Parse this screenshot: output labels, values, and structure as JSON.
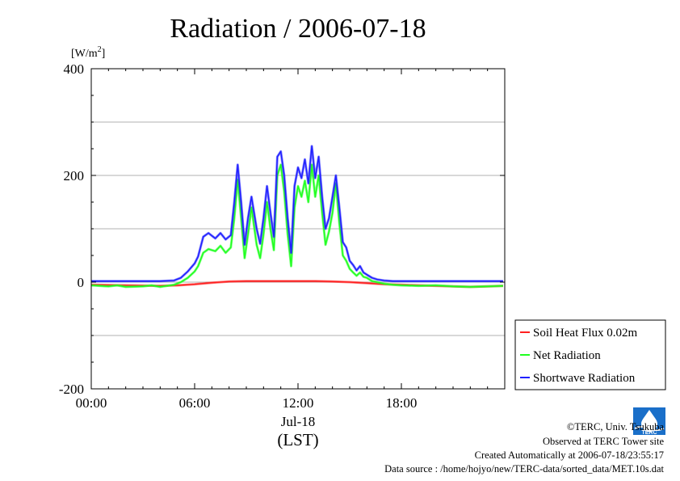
{
  "chart_data": {
    "type": "line",
    "title": "Radiation / 2006-07-18",
    "ylabel": "[W/m²]",
    "ylabel_parts": {
      "base": "[W/m",
      "sup": "2",
      "close": "]"
    },
    "ylim": [
      -200,
      400
    ],
    "xlim": [
      0,
      24
    ],
    "yticks": [
      {
        "value": 400,
        "label": "400"
      },
      {
        "value": 200,
        "label": "200"
      },
      {
        "value": 0,
        "label": "0"
      },
      {
        "value": -200,
        "label": "-200"
      }
    ],
    "ygrid": [
      300,
      200,
      100,
      0,
      -100
    ],
    "xticks": [
      {
        "value": 0,
        "label": "00:00"
      },
      {
        "value": 6,
        "label": "06:00"
      },
      {
        "value": 12,
        "label": "12:00"
      },
      {
        "value": 18,
        "label": "18:00"
      }
    ],
    "xlabel_date": "Jul-18",
    "xlabel": "(LST)",
    "grid": true,
    "legend_position": "right, below plot center",
    "series": [
      {
        "name": "Soil Heat Flux 0.02m",
        "color": "#ff2020",
        "x": [
          0,
          2,
          4,
          5,
          6,
          7,
          8,
          9,
          10,
          11,
          12,
          13,
          14,
          15,
          16,
          17,
          18,
          19,
          20,
          21,
          22,
          23,
          23.9
        ],
        "y": [
          -5,
          -6,
          -7,
          -6,
          -4,
          -1,
          1,
          2,
          2,
          2,
          2,
          2,
          1,
          0,
          -2,
          -4,
          -5,
          -6,
          -7,
          -8,
          -9,
          -8,
          -7
        ]
      },
      {
        "name": "Net Radiation",
        "color": "#20ff20",
        "x": [
          0,
          1,
          1.5,
          2,
          3,
          3.5,
          4,
          4.8,
          5.2,
          5.6,
          6,
          6.2,
          6.5,
          6.8,
          7.2,
          7.5,
          7.8,
          8.1,
          8.3,
          8.5,
          8.7,
          8.9,
          9.1,
          9.3,
          9.6,
          9.8,
          10.0,
          10.2,
          10.4,
          10.6,
          10.8,
          11.0,
          11.2,
          11.4,
          11.6,
          11.8,
          12.0,
          12.2,
          12.4,
          12.6,
          12.8,
          13.0,
          13.2,
          13.4,
          13.6,
          13.8,
          14.0,
          14.2,
          14.4,
          14.6,
          14.8,
          15.0,
          15.2,
          15.4,
          15.6,
          15.8,
          16.0,
          16.3,
          16.6,
          17.0,
          17.5,
          18.0,
          19.0,
          20.0,
          21.0,
          22.0,
          23.0,
          23.9
        ],
        "y": [
          -6,
          -8,
          -6,
          -9,
          -8,
          -6,
          -9,
          -5,
          0,
          8,
          20,
          30,
          55,
          62,
          58,
          68,
          55,
          65,
          120,
          192,
          120,
          45,
          90,
          140,
          70,
          45,
          90,
          150,
          100,
          60,
          200,
          220,
          170,
          90,
          30,
          140,
          180,
          160,
          190,
          150,
          220,
          160,
          200,
          130,
          70,
          95,
          130,
          185,
          110,
          50,
          40,
          25,
          18,
          12,
          18,
          10,
          8,
          2,
          0,
          -3,
          -5,
          -6,
          -7,
          -6,
          -8,
          -9,
          -8,
          -7
        ]
      },
      {
        "name": "Shortwave Radiation",
        "color": "#2020ff",
        "x": [
          0,
          2,
          4,
          4.8,
          5.2,
          5.6,
          6.0,
          6.2,
          6.5,
          6.8,
          7.2,
          7.5,
          7.8,
          8.1,
          8.3,
          8.5,
          8.7,
          8.9,
          9.1,
          9.3,
          9.6,
          9.8,
          10.0,
          10.2,
          10.4,
          10.6,
          10.8,
          11.0,
          11.2,
          11.4,
          11.6,
          11.8,
          12.0,
          12.2,
          12.4,
          12.6,
          12.8,
          13.0,
          13.2,
          13.4,
          13.6,
          13.8,
          14.0,
          14.2,
          14.4,
          14.6,
          14.8,
          15.0,
          15.2,
          15.4,
          15.6,
          15.8,
          16.0,
          16.3,
          16.6,
          17.0,
          17.5,
          18.0,
          19.0,
          20.0,
          21.0,
          22.0,
          23.0,
          23.9
        ],
        "y": [
          2,
          2,
          2,
          3,
          8,
          20,
          35,
          48,
          85,
          92,
          82,
          92,
          80,
          88,
          150,
          220,
          150,
          70,
          120,
          160,
          100,
          72,
          120,
          180,
          130,
          85,
          235,
          245,
          200,
          120,
          55,
          180,
          215,
          195,
          230,
          185,
          255,
          195,
          235,
          160,
          100,
          120,
          160,
          200,
          140,
          75,
          65,
          40,
          32,
          22,
          30,
          18,
          14,
          8,
          5,
          3,
          2,
          2,
          2,
          2,
          2,
          2,
          2,
          2
        ]
      }
    ]
  },
  "credits": {
    "copyright": "©TERC, Univ. Tsukuba",
    "observed": "Observed at TERC Tower site",
    "created": "Created Automatically at 2006-07-18/23:55:17",
    "source": "Data source : /home/hojyo/new/TERC-data/sorted_data/MET.10s.dat",
    "logo_text": "TERC"
  }
}
